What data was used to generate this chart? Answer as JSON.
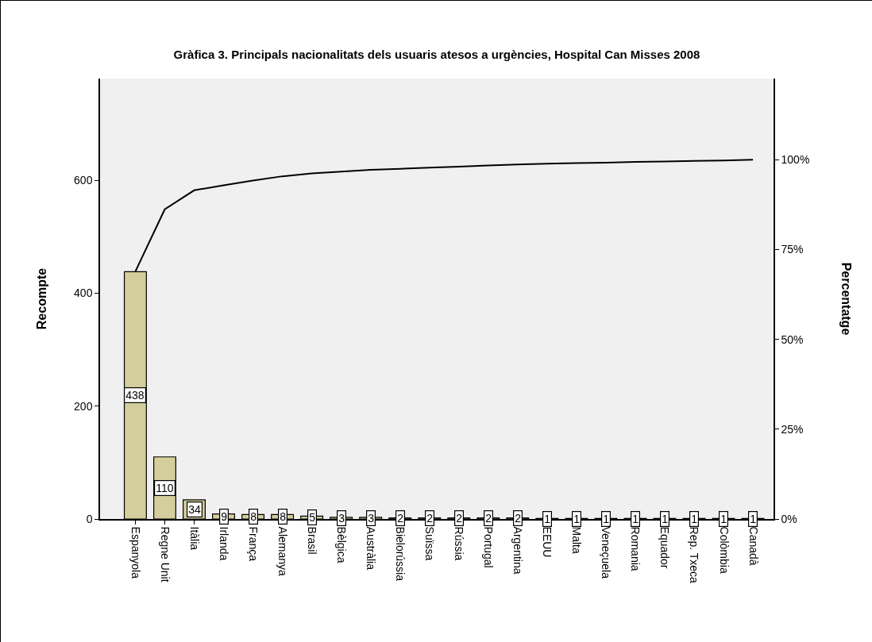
{
  "chart_data": {
    "type": "bar",
    "title": "Gràfica 3. Principals nacionalitats dels usuaris atesos a urgències, Hospital Can Misses 2008",
    "categories": [
      "Espanyola",
      "Regne Unit",
      "Itàlia",
      "Irlanda",
      "França",
      "Alemanya",
      "Brasil",
      "Bèlgica",
      "Austràlia",
      "Bielorússia",
      "Suïssa",
      "Rússia",
      "Portugal",
      "Argentina",
      "EEUU",
      "Malta",
      "Veneçuela",
      "Romania",
      "Equador",
      "Rep. Txeca",
      "Colòmbia",
      "Canadà"
    ],
    "series": [
      {
        "color": "#d3ce9b",
        "values": [
          438,
          110,
          34,
          9,
          8,
          8,
          5,
          3,
          3,
          2,
          2,
          2,
          2,
          2,
          1,
          1,
          1,
          1,
          1,
          1,
          1,
          1
        ],
        "value_labels": [
          "438",
          "110",
          "34",
          "9",
          "8",
          "8",
          "5",
          "3",
          "3",
          "2",
          "2",
          "2",
          "2",
          "2",
          "1",
          "1",
          "1",
          "1",
          "1",
          "1",
          "1",
          "1"
        ]
      },
      {
        "type": "line",
        "axis": "y2",
        "color": "#000000",
        "values": [
          68.9,
          86.2,
          91.5,
          92.9,
          94.2,
          95.4,
          96.2,
          96.7,
          97.2,
          97.5,
          97.8,
          98.1,
          98.4,
          98.7,
          98.9,
          99.1,
          99.2,
          99.4,
          99.5,
          99.7,
          99.8,
          100
        ]
      }
    ],
    "ylabel": "Recompte",
    "y2label": "Percentatge",
    "ylim": [
      0,
      780
    ],
    "yticks": [
      0,
      200,
      400,
      600
    ],
    "y2lim": [
      0,
      122.6
    ],
    "y2ticks": [
      {
        "value": 0,
        "label": "0%"
      },
      {
        "value": 25,
        "label": "25%"
      },
      {
        "value": 50,
        "label": "50%"
      },
      {
        "value": 75,
        "label": "75%"
      },
      {
        "value": 100,
        "label": "100%"
      }
    ],
    "grid": false,
    "legend": false,
    "marker": "none",
    "line_style": "solid"
  }
}
